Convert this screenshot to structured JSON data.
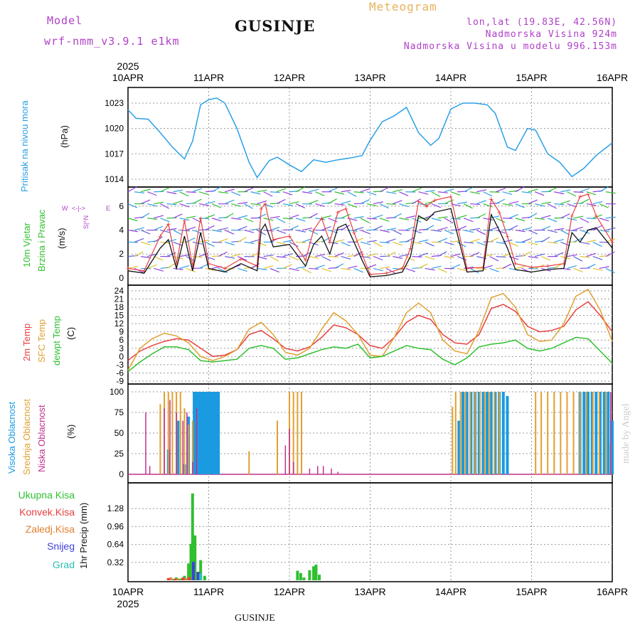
{
  "header": {
    "model_label": "Model",
    "model_name": "wrf-nmm_v3.9.1 e1km",
    "station": "GUSINJE",
    "product": "Meteogram",
    "lonlat": "lon,lat (19.83E, 42.56N)",
    "elevation": "Nadmorska Visina 924m",
    "model_elevation": "Nadmorska Visina u modelu 996.153m",
    "year": "2025",
    "footer_station": "GUSINJE",
    "credit": "made by Angel"
  },
  "colors": {
    "pressure": "#2aa0e6",
    "temp2m": "#e84040",
    "sfc": "#e0a030",
    "dewpt": "#30c030",
    "high_cloud": "#1a9ae0",
    "mid_cloud": "#e0a030",
    "low_cloud": "#c0308c",
    "precip_total": "#30c030",
    "precip_conv": "#e84040",
    "precip_frozen": "#e08030",
    "snow": "#4040e0",
    "graupel": "#30c0b0",
    "wind_speed": "#111111",
    "wind_gust": "#e84040",
    "axis_label_violet": "#b040c8"
  },
  "chart_data": [
    {
      "id": "pressure",
      "type": "line",
      "ylabel_main": "Pritisak na nivou mora",
      "ylabel_unit": "(hPa)",
      "ylim": [
        1014,
        1023
      ],
      "yticks": [
        "1014",
        "1017",
        "1020",
        "1023"
      ],
      "x_labels": [
        "10APR",
        "11APR",
        "12APR",
        "13APR",
        "14APR",
        "15APR",
        "16APR"
      ],
      "x": [
        0,
        0.1,
        0.25,
        0.4,
        0.55,
        0.7,
        0.8,
        0.9,
        1.0,
        1.1,
        1.2,
        1.35,
        1.5,
        1.6,
        1.75,
        1.85,
        2.0,
        2.15,
        2.3,
        2.45,
        2.6,
        2.75,
        2.9,
        3.0,
        3.15,
        3.3,
        3.45,
        3.6,
        3.75,
        3.85,
        4.0,
        4.15,
        4.3,
        4.45,
        4.55,
        4.7,
        4.8,
        4.95,
        5.05,
        5.2,
        5.35,
        5.5,
        5.65,
        5.8,
        6.0
      ],
      "y": [
        1022.2,
        1021.2,
        1021.1,
        1019.5,
        1017.8,
        1016.4,
        1018.5,
        1022.8,
        1023.4,
        1023.6,
        1023.0,
        1020.0,
        1016.0,
        1014.2,
        1016.2,
        1016.6,
        1015.7,
        1014.9,
        1016.3,
        1016.0,
        1016.3,
        1016.5,
        1016.8,
        1018.6,
        1020.8,
        1021.5,
        1022.5,
        1019.5,
        1018.0,
        1018.8,
        1022.3,
        1023.0,
        1023.0,
        1022.8,
        1021.8,
        1017.8,
        1017.4,
        1020.0,
        1019.8,
        1017.0,
        1016.0,
        1014.3,
        1015.3,
        1016.8,
        1018.3
      ]
    },
    {
      "id": "wind",
      "type": "line",
      "ylabel_main_1": "10m Vjetar",
      "ylabel_main_2": "Brzina i Pravac",
      "ylabel_unit": "(m/s)",
      "compass": [
        "W",
        "<",
        "-",
        "|",
        "-",
        ">",
        "E",
        "N",
        "^",
        "|",
        "S"
      ],
      "ylim": [
        -0.6,
        7.6
      ],
      "yticks": [
        "0",
        "2",
        "4",
        "6"
      ],
      "series": [
        {
          "x": [
            0,
            0.2,
            0.4,
            0.5,
            0.6,
            0.7,
            0.8,
            0.9,
            1.0,
            1.2,
            1.4,
            1.6,
            1.65,
            1.7,
            1.8,
            2.0,
            2.2,
            2.3,
            2.4,
            2.5,
            2.6,
            2.7,
            2.8,
            2.9,
            3.0,
            3.2,
            3.4,
            3.5,
            3.6,
            3.7,
            3.8,
            4.0,
            4.2,
            4.4,
            4.5,
            4.6,
            4.7,
            4.8,
            5.0,
            5.2,
            5.4,
            5.5,
            5.6,
            5.7,
            5.8,
            6.0
          ],
          "y": [
            0.6,
            0.4,
            2.5,
            3.2,
            0.8,
            3.5,
            0.6,
            3.8,
            0.8,
            0.5,
            1.2,
            0.6,
            4.0,
            4.5,
            2.6,
            2.8,
            1.0,
            2.8,
            3.5,
            2.0,
            4.2,
            4.5,
            3.0,
            1.5,
            0.1,
            0.2,
            0.5,
            1.8,
            5.2,
            4.8,
            5.5,
            5.8,
            0.5,
            0.6,
            5.3,
            4.0,
            2.5,
            0.7,
            0.5,
            0.7,
            0.8,
            3.8,
            3.0,
            4.0,
            4.2,
            2.5
          ]
        },
        {
          "x": [
            0,
            0.2,
            0.4,
            0.5,
            0.6,
            0.7,
            0.8,
            0.9,
            1.0,
            1.2,
            1.4,
            1.6,
            1.65,
            1.7,
            1.8,
            2.0,
            2.2,
            2.3,
            2.4,
            2.5,
            2.6,
            2.7,
            2.8,
            2.9,
            3.0,
            3.2,
            3.4,
            3.5,
            3.6,
            3.7,
            3.8,
            4.0,
            4.2,
            4.4,
            4.5,
            4.6,
            4.7,
            4.8,
            5.0,
            5.2,
            5.4,
            5.5,
            5.6,
            5.7,
            5.8,
            6.0
          ],
          "y": [
            0.8,
            0.6,
            3.5,
            4.5,
            1.2,
            4.8,
            1.0,
            5.0,
            1.2,
            0.8,
            1.6,
            1.0,
            5.8,
            6.2,
            3.2,
            3.5,
            1.5,
            4.0,
            5.0,
            3.0,
            5.5,
            5.8,
            3.8,
            2.0,
            0.3,
            0.4,
            0.8,
            2.5,
            6.4,
            6.0,
            6.5,
            6.8,
            0.8,
            0.9,
            6.6,
            5.5,
            3.5,
            1.2,
            0.9,
            1.0,
            1.2,
            5.2,
            6.8,
            7.0,
            5.2,
            3.0
          ]
        }
      ]
    },
    {
      "id": "temperature",
      "type": "line",
      "ylabel_main_1": "2m Temp",
      "ylabel_main_2": "SFC Temp",
      "ylabel_main_3": "dewpt Temp",
      "ylabel_unit": "(C)",
      "ylim": [
        -9,
        25
      ],
      "yticks": [
        "-9",
        "-6",
        "-3",
        "0",
        "3",
        "6",
        "9",
        "12",
        "15",
        "18",
        "21",
        "24"
      ],
      "x": [
        0,
        0.15,
        0.3,
        0.45,
        0.6,
        0.75,
        0.9,
        1.05,
        1.2,
        1.35,
        1.5,
        1.65,
        1.8,
        1.95,
        2.1,
        2.25,
        2.4,
        2.55,
        2.7,
        2.85,
        3.0,
        3.15,
        3.3,
        3.45,
        3.6,
        3.75,
        3.9,
        4.05,
        4.2,
        4.35,
        4.5,
        4.65,
        4.8,
        4.95,
        5.1,
        5.25,
        5.4,
        5.55,
        5.7,
        5.85,
        6.0
      ],
      "series": [
        {
          "y": [
            -1.5,
            2.0,
            4.0,
            5.5,
            6.5,
            6.0,
            3.0,
            0.0,
            0.5,
            2.5,
            8.0,
            9.5,
            6.5,
            3.0,
            2.0,
            3.5,
            7.0,
            11.5,
            10.5,
            8.0,
            4.0,
            3.0,
            7.0,
            12.5,
            15.0,
            13.5,
            8.0,
            5.0,
            4.5,
            8.0,
            17.5,
            19.0,
            16.5,
            11.0,
            9.0,
            9.5,
            11.0,
            17.0,
            20.0,
            15.0,
            9.0
          ]
        },
        {
          "y": [
            -5.0,
            3.0,
            6.5,
            8.5,
            7.5,
            5.0,
            0.0,
            -1.5,
            0.0,
            2.5,
            10.0,
            12.5,
            8.0,
            1.5,
            0.5,
            3.0,
            10.0,
            16.0,
            13.0,
            8.0,
            0.5,
            0.0,
            7.0,
            16.0,
            19.5,
            16.0,
            6.0,
            2.0,
            1.0,
            9.5,
            21.5,
            23.0,
            18.0,
            8.0,
            5.5,
            6.0,
            12.0,
            22.0,
            24.5,
            17.0,
            5.5
          ]
        },
        {
          "y": [
            -5.5,
            -2.0,
            1.0,
            3.5,
            3.5,
            2.5,
            -1.5,
            -2.0,
            -1.5,
            -1.0,
            3.0,
            4.0,
            3.0,
            -1.0,
            -0.5,
            1.0,
            2.5,
            3.5,
            3.0,
            4.5,
            -0.5,
            0.0,
            2.0,
            4.0,
            3.0,
            2.5,
            -1.0,
            -3.0,
            -0.5,
            3.5,
            4.5,
            5.0,
            6.0,
            3.0,
            2.0,
            3.0,
            5.0,
            7.0,
            6.5,
            2.0,
            -2.5
          ]
        }
      ]
    },
    {
      "id": "clouds",
      "type": "bar",
      "ylabel_main_1": "Visoka Oblacnost",
      "ylabel_main_2": "Srednja Oblacnost",
      "ylabel_main_3": "Niska Oblacnost",
      "ylabel_unit": "(%)",
      "ylim": [
        0,
        100
      ],
      "yticks": [
        "0",
        "25",
        "50",
        "75",
        "100"
      ],
      "series": [
        {
          "x": [
            0.5,
            0.62,
            0.7,
            0.75,
            0.82,
            0.85,
            0.88,
            0.91,
            0.94,
            0.97,
            1.0,
            1.03,
            1.06,
            1.09,
            1.12,
            4.1,
            4.15,
            4.2,
            4.25,
            4.3,
            4.35,
            4.4,
            4.45,
            4.5,
            4.55,
            4.6,
            4.65,
            4.7,
            5.6,
            5.65,
            5.7,
            5.75,
            5.8,
            5.85,
            5.9,
            5.95,
            6.0
          ],
          "y": [
            30,
            65,
            12,
            70,
            100,
            100,
            100,
            100,
            100,
            100,
            100,
            100,
            100,
            100,
            100,
            65,
            100,
            100,
            100,
            100,
            100,
            100,
            100,
            100,
            100,
            100,
            100,
            95,
            100,
            100,
            100,
            100,
            100,
            100,
            100,
            100,
            65
          ]
        },
        {
          "x": [
            0.4,
            0.45,
            0.5,
            0.55,
            0.6,
            0.65,
            0.7,
            0.75,
            0.8,
            1.5,
            1.85,
            2.0,
            2.05,
            2.1,
            2.15,
            4.02,
            4.06,
            4.12,
            4.18,
            4.24,
            4.3,
            4.36,
            4.42,
            4.48,
            4.54,
            4.6,
            5.05,
            5.12,
            5.2,
            5.28,
            5.36,
            5.44,
            5.52,
            5.6,
            5.68,
            5.76,
            5.84,
            5.92,
            5.98
          ],
          "y": [
            85,
            100,
            100,
            100,
            100,
            100,
            80,
            60,
            65,
            28,
            65,
            100,
            100,
            100,
            100,
            82,
            100,
            100,
            100,
            100,
            100,
            100,
            100,
            100,
            100,
            100,
            100,
            100,
            100,
            100,
            100,
            100,
            100,
            100,
            100,
            100,
            100,
            100,
            38
          ]
        },
        {
          "x": [
            0.22,
            0.27,
            0.45,
            0.52,
            0.6,
            0.68,
            0.73,
            0.8,
            0.85,
            1.95,
            2.0,
            2.05,
            2.25,
            2.35,
            2.42,
            2.52,
            2.6,
            5.98
          ],
          "y": [
            75,
            10,
            80,
            90,
            75,
            65,
            75,
            15,
            80,
            35,
            55,
            15,
            7,
            10,
            10,
            7,
            3,
            100
          ]
        }
      ]
    },
    {
      "id": "precip",
      "type": "bar",
      "ylabel_main": "1hr Precip (mm)",
      "ylim": [
        0,
        1.6
      ],
      "yticks": [
        "0.32",
        "0.64",
        "0.96",
        "1.28"
      ],
      "legend": [
        "Ukupna Kisa",
        "Konvek.Kisa",
        "Zaledj.Kisa",
        "Snijeg",
        "Grad"
      ],
      "series": [
        {
          "name": "Ukupna Kisa",
          "x": [
            0.55,
            0.6,
            0.65,
            0.7,
            0.75,
            0.78,
            0.8,
            0.83,
            0.86,
            0.9,
            0.95,
            2.1,
            2.14,
            2.18,
            2.25,
            2.3,
            2.33,
            2.37
          ],
          "y": [
            0.02,
            0.05,
            0.03,
            0.08,
            0.3,
            0.65,
            1.55,
            0.8,
            0.15,
            0.36,
            0.08,
            0.17,
            0.13,
            0.05,
            0.18,
            0.25,
            0.28,
            0.1
          ]
        },
        {
          "name": "Konvek.Kisa",
          "x": [
            0.5,
            0.58,
            0.68,
            0.76
          ],
          "y": [
            0.04,
            0.03,
            0.05,
            0.06
          ]
        },
        {
          "name": "Zaledj.Kisa",
          "x": [
            0.53,
            0.62,
            0.72
          ],
          "y": [
            0.05,
            0.03,
            0.04
          ]
        },
        {
          "name": "Snijeg",
          "x": [
            0.81,
            0.87
          ],
          "y": [
            0.33,
            0.15
          ]
        },
        {
          "name": "Grad",
          "x": [
            0.9
          ],
          "y": [
            0.12
          ]
        }
      ]
    }
  ]
}
